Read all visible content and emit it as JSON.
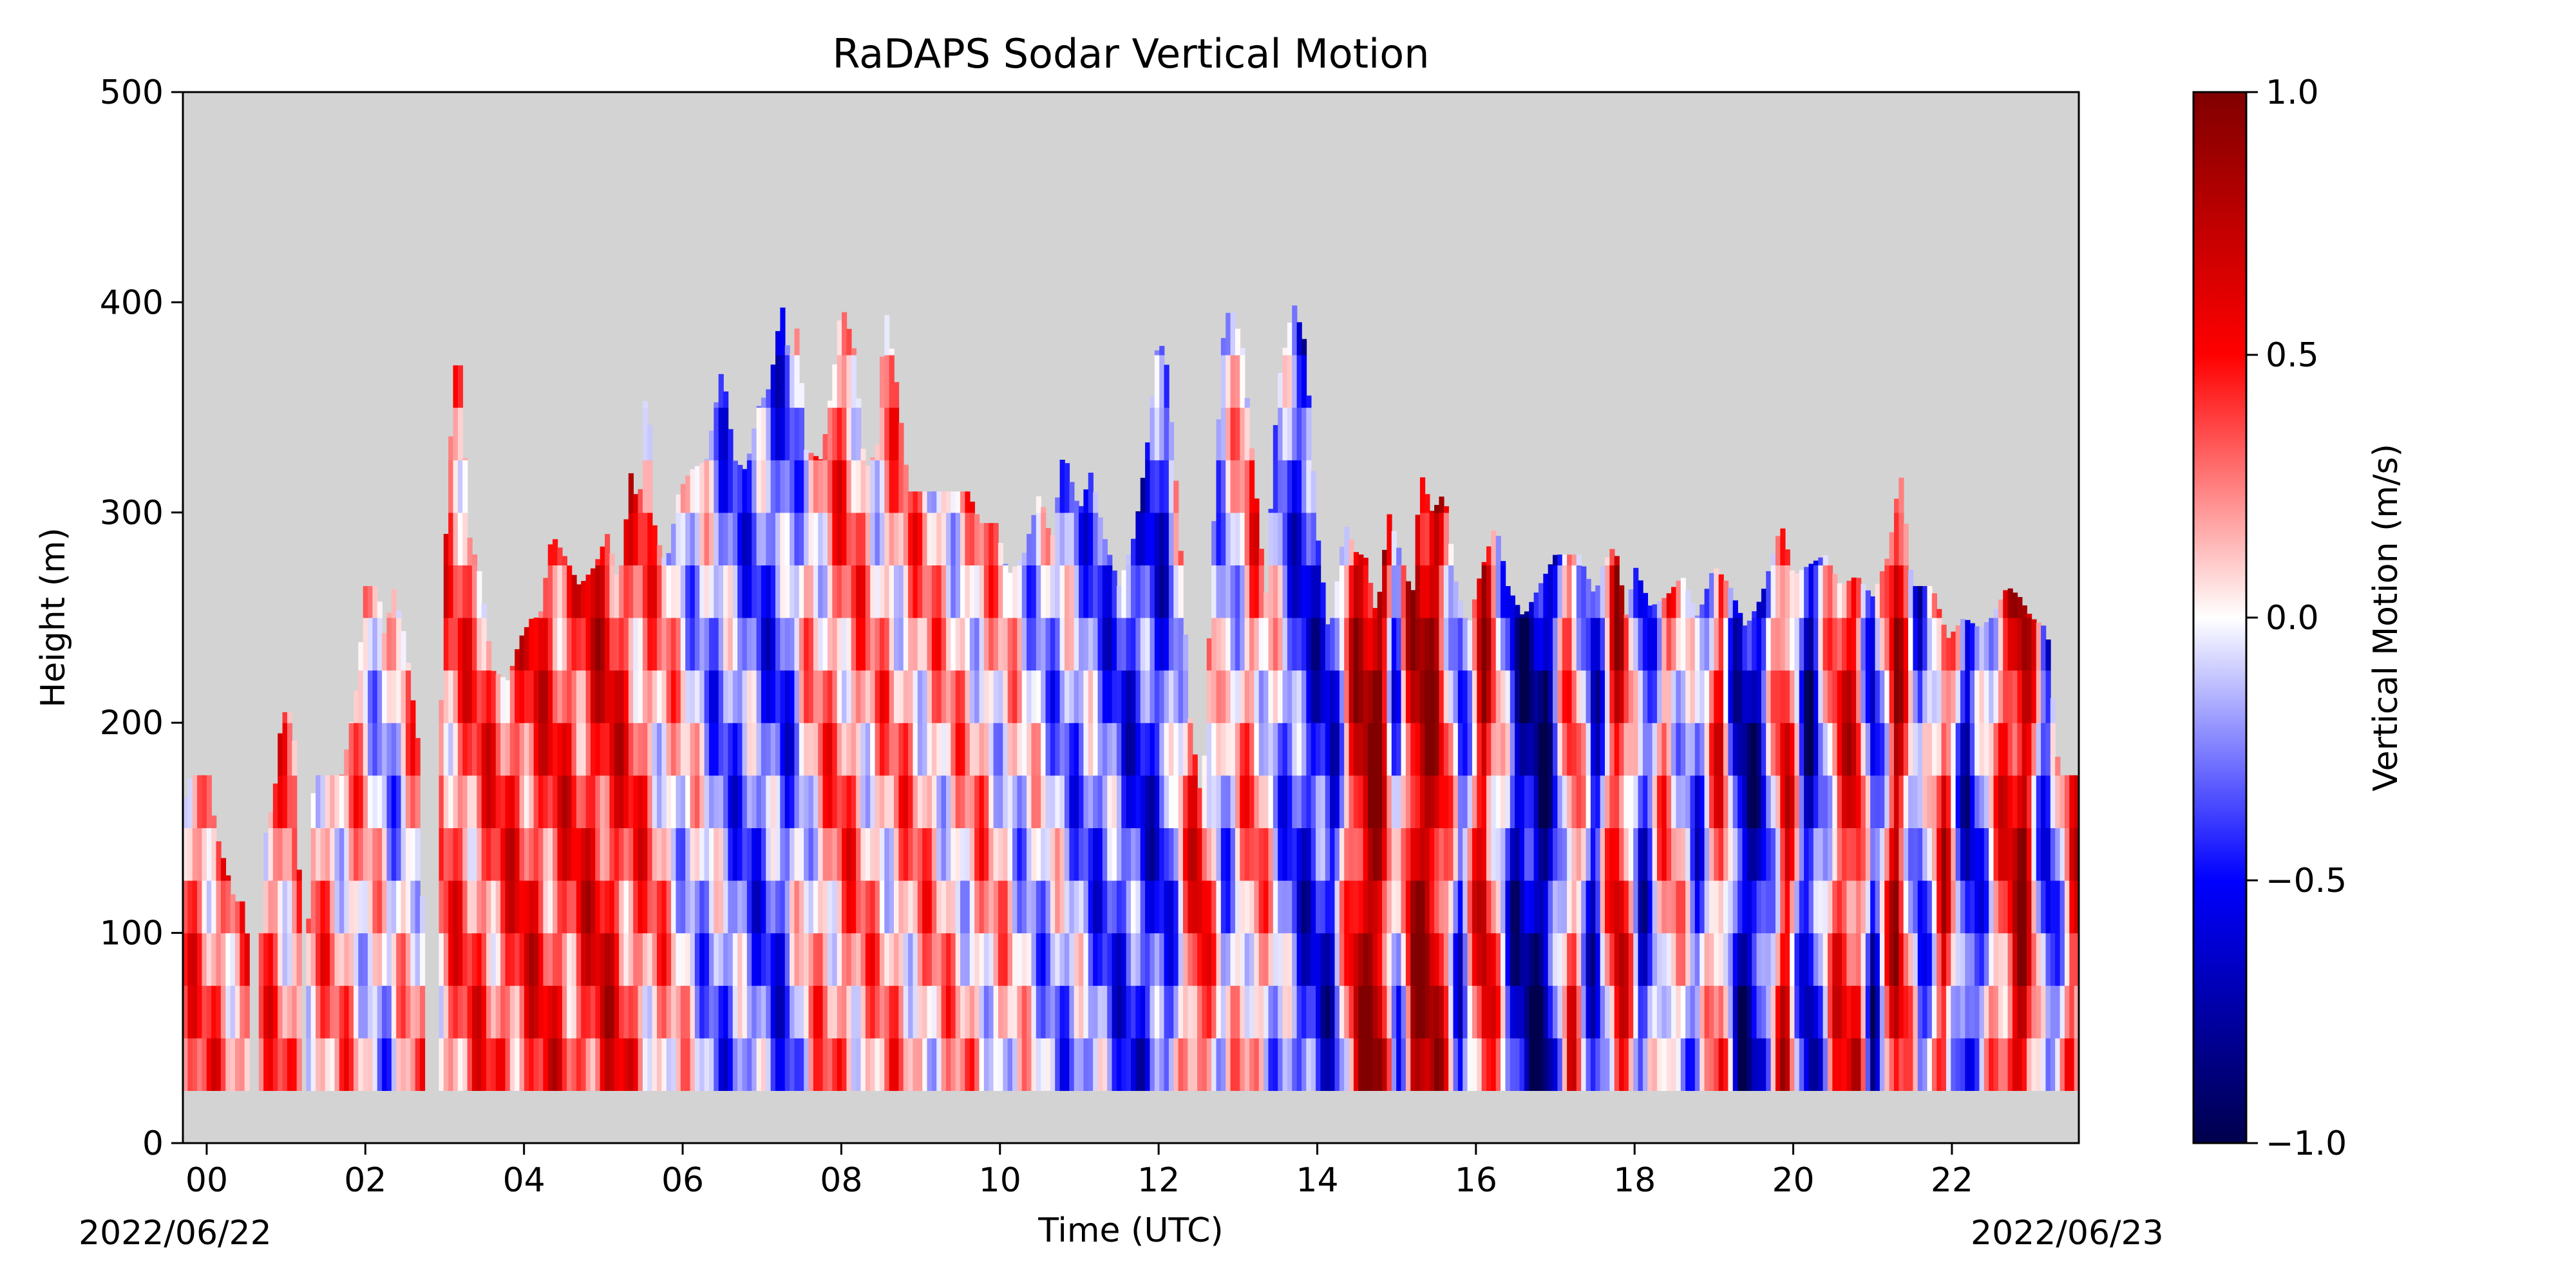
{
  "chart_data": {
    "type": "heatmap",
    "title": "RaDAPS Sodar Vertical Motion",
    "xlabel": "Time (UTC)",
    "ylabel": "Height (m)",
    "xlim": [
      -0.3,
      23.6
    ],
    "ylim": [
      0,
      500
    ],
    "x_ticks": [
      0,
      2,
      4,
      6,
      8,
      10,
      12,
      14,
      16,
      18,
      20,
      22
    ],
    "x_tick_labels": [
      "00",
      "02",
      "04",
      "06",
      "08",
      "10",
      "12",
      "14",
      "16",
      "18",
      "20",
      "22"
    ],
    "y_ticks": [
      0,
      100,
      200,
      300,
      400,
      500
    ],
    "y_tick_labels": [
      "0",
      "100",
      "200",
      "300",
      "400",
      "500"
    ],
    "date_start": "2022/06/22",
    "date_end": "2022/06/23",
    "background_color": "#d3d3d3",
    "data_bottom_height": 25,
    "colormap": "seismic",
    "colorbar": {
      "label": "Vertical Motion (m/s)",
      "range": [
        -1.0,
        1.0
      ],
      "ticks": [
        1.0,
        0.5,
        0.0,
        -0.5,
        -1.0
      ],
      "tick_labels": [
        "1.0",
        "0.5",
        "0.0",
        "−0.5",
        "−1.0"
      ]
    },
    "tops": [
      [
        -0.3,
        160
      ],
      [
        -0.2,
        175
      ],
      [
        0.05,
        175
      ],
      [
        0.1,
        150
      ],
      [
        0.25,
        130
      ],
      [
        0.35,
        115
      ],
      [
        0.5,
        115
      ],
      [
        0.55,
        0
      ],
      [
        0.65,
        0
      ],
      [
        0.7,
        140
      ],
      [
        0.85,
        165
      ],
      [
        0.95,
        205
      ],
      [
        1.05,
        205
      ],
      [
        1.15,
        180
      ],
      [
        1.2,
        0
      ],
      [
        1.25,
        0
      ],
      [
        1.3,
        160
      ],
      [
        1.4,
        175
      ],
      [
        1.7,
        175
      ],
      [
        1.8,
        195
      ],
      [
        1.9,
        220
      ],
      [
        2.0,
        265
      ],
      [
        2.15,
        265
      ],
      [
        2.25,
        240
      ],
      [
        2.35,
        265
      ],
      [
        2.5,
        240
      ],
      [
        2.6,
        210
      ],
      [
        2.7,
        180
      ],
      [
        2.75,
        0
      ],
      [
        2.9,
        0
      ],
      [
        2.95,
        200
      ],
      [
        3.0,
        285
      ],
      [
        3.05,
        300
      ],
      [
        3.1,
        370
      ],
      [
        3.2,
        370
      ],
      [
        3.3,
        290
      ],
      [
        3.45,
        270
      ],
      [
        3.6,
        225
      ],
      [
        3.8,
        220
      ],
      [
        3.95,
        240
      ],
      [
        4.1,
        250
      ],
      [
        4.2,
        250
      ],
      [
        4.35,
        290
      ],
      [
        4.5,
        280
      ],
      [
        4.7,
        265
      ],
      [
        4.9,
        275
      ],
      [
        5.05,
        290
      ],
      [
        5.2,
        265
      ],
      [
        5.35,
        320
      ],
      [
        5.45,
        300
      ],
      [
        5.55,
        370
      ],
      [
        5.65,
        290
      ],
      [
        5.8,
        275
      ],
      [
        5.95,
        310
      ],
      [
        6.1,
        320
      ],
      [
        6.3,
        325
      ],
      [
        6.5,
        370
      ],
      [
        6.65,
        325
      ],
      [
        6.8,
        320
      ],
      [
        6.95,
        350
      ],
      [
        7.1,
        360
      ],
      [
        7.25,
        400
      ],
      [
        7.35,
        370
      ],
      [
        7.45,
        390
      ],
      [
        7.55,
        330
      ],
      [
        7.75,
        325
      ],
      [
        7.9,
        365
      ],
      [
        8.0,
        400
      ],
      [
        8.15,
        380
      ],
      [
        8.3,
        320
      ],
      [
        8.45,
        330
      ],
      [
        8.55,
        400
      ],
      [
        8.7,
        360
      ],
      [
        8.85,
        310
      ],
      [
        9.1,
        310
      ],
      [
        9.35,
        310
      ],
      [
        9.6,
        310
      ],
      [
        9.75,
        295
      ],
      [
        9.95,
        295
      ],
      [
        10.1,
        270
      ],
      [
        10.3,
        280
      ],
      [
        10.5,
        310
      ],
      [
        10.65,
        285
      ],
      [
        10.8,
        330
      ],
      [
        11.0,
        300
      ],
      [
        11.15,
        320
      ],
      [
        11.3,
        290
      ],
      [
        11.5,
        265
      ],
      [
        11.7,
        290
      ],
      [
        11.85,
        330
      ],
      [
        12.0,
        385
      ],
      [
        12.1,
        370
      ],
      [
        12.25,
        300
      ],
      [
        12.4,
        200
      ],
      [
        12.55,
        160
      ],
      [
        12.7,
        300
      ],
      [
        12.8,
        380
      ],
      [
        12.9,
        400
      ],
      [
        13.05,
        380
      ],
      [
        13.2,
        320
      ],
      [
        13.35,
        260
      ],
      [
        13.5,
        360
      ],
      [
        13.7,
        400
      ],
      [
        13.85,
        380
      ],
      [
        14.0,
        290
      ],
      [
        14.15,
        240
      ],
      [
        14.35,
        295
      ],
      [
        14.5,
        280
      ],
      [
        14.6,
        280
      ],
      [
        14.75,
        250
      ],
      [
        14.9,
        300
      ],
      [
        15.05,
        280
      ],
      [
        15.2,
        260
      ],
      [
        15.3,
        320
      ],
      [
        15.45,
        300
      ],
      [
        15.6,
        310
      ],
      [
        15.75,
        265
      ],
      [
        15.9,
        245
      ],
      [
        16.05,
        270
      ],
      [
        16.25,
        295
      ],
      [
        16.4,
        265
      ],
      [
        16.6,
        250
      ],
      [
        16.8,
        265
      ],
      [
        17.0,
        280
      ],
      [
        17.3,
        280
      ],
      [
        17.5,
        260
      ],
      [
        17.6,
        275
      ],
      [
        17.75,
        285
      ],
      [
        17.9,
        250
      ],
      [
        18.0,
        275
      ],
      [
        18.2,
        255
      ],
      [
        18.4,
        260
      ],
      [
        18.6,
        270
      ],
      [
        18.8,
        250
      ],
      [
        19.0,
        275
      ],
      [
        19.2,
        265
      ],
      [
        19.4,
        245
      ],
      [
        19.6,
        260
      ],
      [
        19.85,
        295
      ],
      [
        20.0,
        270
      ],
      [
        20.2,
        275
      ],
      [
        20.4,
        280
      ],
      [
        20.6,
        265
      ],
      [
        20.8,
        270
      ],
      [
        21.0,
        260
      ],
      [
        21.2,
        280
      ],
      [
        21.35,
        320
      ],
      [
        21.5,
        265
      ],
      [
        21.75,
        265
      ],
      [
        21.95,
        240
      ],
      [
        22.15,
        250
      ],
      [
        22.35,
        245
      ],
      [
        22.5,
        250
      ],
      [
        22.7,
        265
      ],
      [
        22.85,
        260
      ],
      [
        23.0,
        250
      ],
      [
        23.2,
        245
      ],
      [
        23.35,
        175
      ],
      [
        23.6,
        175
      ]
    ],
    "bands": [
      [
        0.0,
        0.3
      ],
      [
        0.6,
        0.28
      ],
      [
        1.0,
        0.25
      ],
      [
        1.5,
        0.2
      ],
      [
        2.0,
        0.1
      ],
      [
        2.3,
        -0.15
      ],
      [
        2.6,
        0.15
      ],
      [
        3.0,
        0.3
      ],
      [
        3.6,
        0.35
      ],
      [
        4.0,
        0.45
      ],
      [
        4.6,
        0.4
      ],
      [
        5.0,
        0.55
      ],
      [
        5.5,
        0.3
      ],
      [
        6.0,
        0.0
      ],
      [
        6.5,
        -0.25
      ],
      [
        7.0,
        -0.3
      ],
      [
        7.3,
        -0.35
      ],
      [
        7.6,
        0.1
      ],
      [
        8.0,
        0.3
      ],
      [
        8.4,
        0.15
      ],
      [
        8.9,
        0.2
      ],
      [
        9.4,
        0.1
      ],
      [
        9.8,
        0.15
      ],
      [
        10.3,
        -0.05
      ],
      [
        10.7,
        -0.15
      ],
      [
        11.1,
        -0.25
      ],
      [
        11.5,
        -0.35
      ],
      [
        11.8,
        -0.45
      ],
      [
        12.1,
        -0.4
      ],
      [
        12.5,
        0.6
      ],
      [
        12.8,
        -0.2
      ],
      [
        13.2,
        0.3
      ],
      [
        13.5,
        -0.15
      ],
      [
        13.8,
        -0.45
      ],
      [
        14.2,
        -0.5
      ],
      [
        14.5,
        0.7
      ],
      [
        14.8,
        0.9
      ],
      [
        15.0,
        -0.45
      ],
      [
        15.2,
        0.8
      ],
      [
        15.5,
        0.75
      ],
      [
        15.8,
        -0.4
      ],
      [
        16.1,
        0.7
      ],
      [
        16.5,
        -0.65
      ],
      [
        16.9,
        -0.8
      ],
      [
        17.2,
        0.45
      ],
      [
        17.5,
        -0.6
      ],
      [
        17.8,
        0.75
      ],
      [
        18.1,
        -0.55
      ],
      [
        18.4,
        0.3
      ],
      [
        18.8,
        -0.35
      ],
      [
        19.1,
        0.5
      ],
      [
        19.3,
        -0.7
      ],
      [
        19.6,
        -0.6
      ],
      [
        19.9,
        0.65
      ],
      [
        20.2,
        -0.75
      ],
      [
        20.5,
        0.3
      ],
      [
        20.8,
        0.6
      ],
      [
        21.0,
        -0.6
      ],
      [
        21.3,
        0.75
      ],
      [
        21.6,
        -0.45
      ],
      [
        21.9,
        0.55
      ],
      [
        22.2,
        -0.65
      ],
      [
        22.6,
        0.3
      ],
      [
        22.9,
        0.85
      ],
      [
        23.2,
        -0.55
      ],
      [
        23.5,
        0.4
      ]
    ]
  }
}
